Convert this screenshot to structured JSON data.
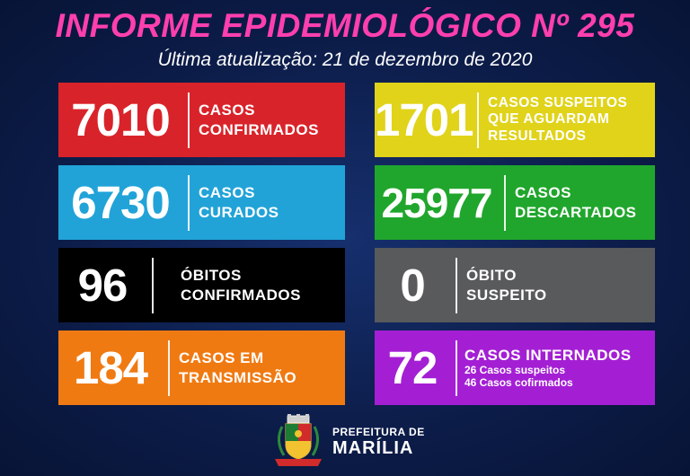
{
  "header": {
    "title": "INFORME EPIDEMIOLÓGICO Nº 295",
    "subtitle": "Última atualização: 21 de dezembro de 2020"
  },
  "cards": [
    {
      "value": "7010",
      "label": "CASOS\nCONFIRMADOS",
      "color": "#d9232a"
    },
    {
      "value": "1701",
      "label": "CASOS SUSPEITOS\nQUE AGUARDAM\nRESULTADOS",
      "color": "#e0d319"
    },
    {
      "value": "6730",
      "label": "CASOS\nCURADOS",
      "color": "#21a3d8"
    },
    {
      "value": "25977",
      "label": "CASOS\nDESCARTADOS",
      "color": "#20a62c"
    },
    {
      "value": "96",
      "label": "ÓBITOS\nCONFIRMADOS",
      "color": "#000000"
    },
    {
      "value": "0",
      "label": "ÓBITO\nSUSPEITO",
      "color": "#585a5c"
    },
    {
      "value": "184",
      "label": "CASOS EM\nTRANSMISSÃO",
      "color": "#f07a12"
    },
    {
      "value": "72",
      "label": "CASOS INTERNADOS",
      "sub1": "26 Casos suspeitos",
      "sub2": "46 Casos cofirmados",
      "color": "#a41fd4"
    }
  ],
  "footer": {
    "line1": "PREFEITURA DE",
    "line2": "MARÍLIA",
    "crest_icon": "city-coat-of-arms-icon"
  }
}
